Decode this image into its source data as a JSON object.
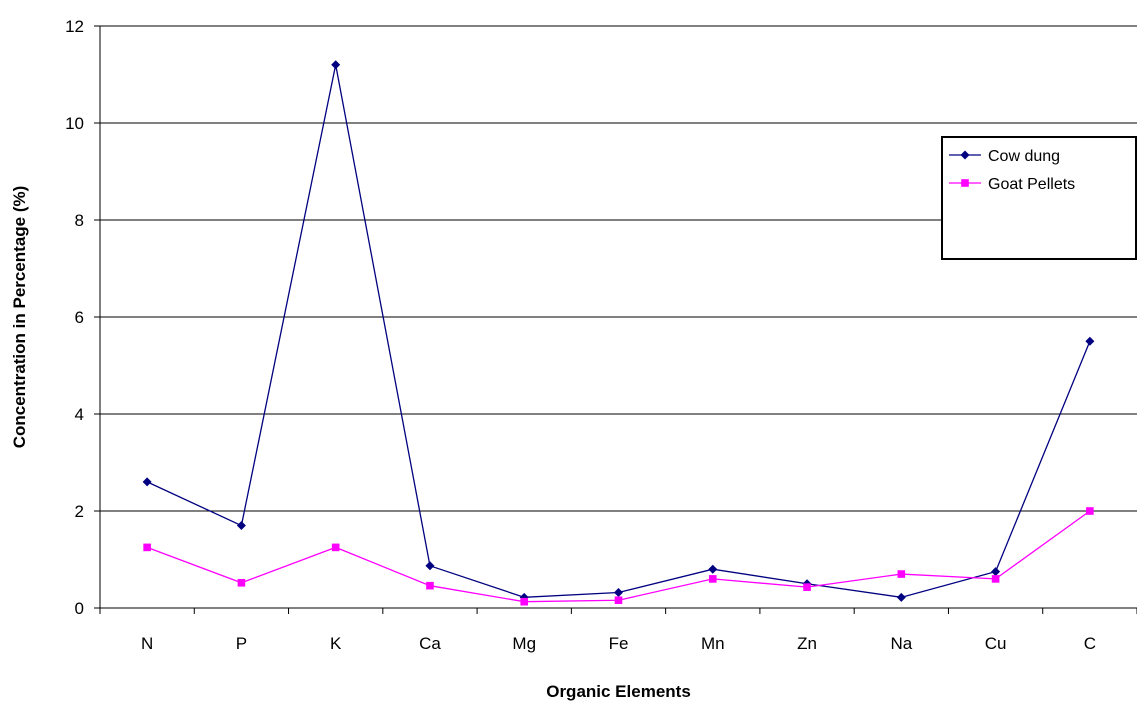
{
  "chart_data": {
    "type": "line",
    "title": "",
    "xlabel": "Organic Elements",
    "ylabel": "Concentration in Percentage (%)",
    "categories": [
      "N",
      "P",
      "K",
      "Ca",
      "Mg",
      "Fe",
      "Mn",
      "Zn",
      "Na",
      "Cu",
      "C"
    ],
    "ylim": [
      0,
      12
    ],
    "yticks": [
      0,
      2,
      4,
      6,
      8,
      10,
      12
    ],
    "grid": true,
    "legend_position": "right",
    "series": [
      {
        "name": "Cow dung",
        "color": "#000080",
        "marker": "diamond",
        "values": [
          2.6,
          1.7,
          11.2,
          0.87,
          0.22,
          0.32,
          0.8,
          0.5,
          0.22,
          0.75,
          5.5
        ]
      },
      {
        "name": "Goat Pellets",
        "color": "#ff00ff",
        "marker": "square",
        "values": [
          1.25,
          0.52,
          1.25,
          0.46,
          0.13,
          0.16,
          0.6,
          0.43,
          0.7,
          0.6,
          2.0
        ]
      }
    ]
  }
}
